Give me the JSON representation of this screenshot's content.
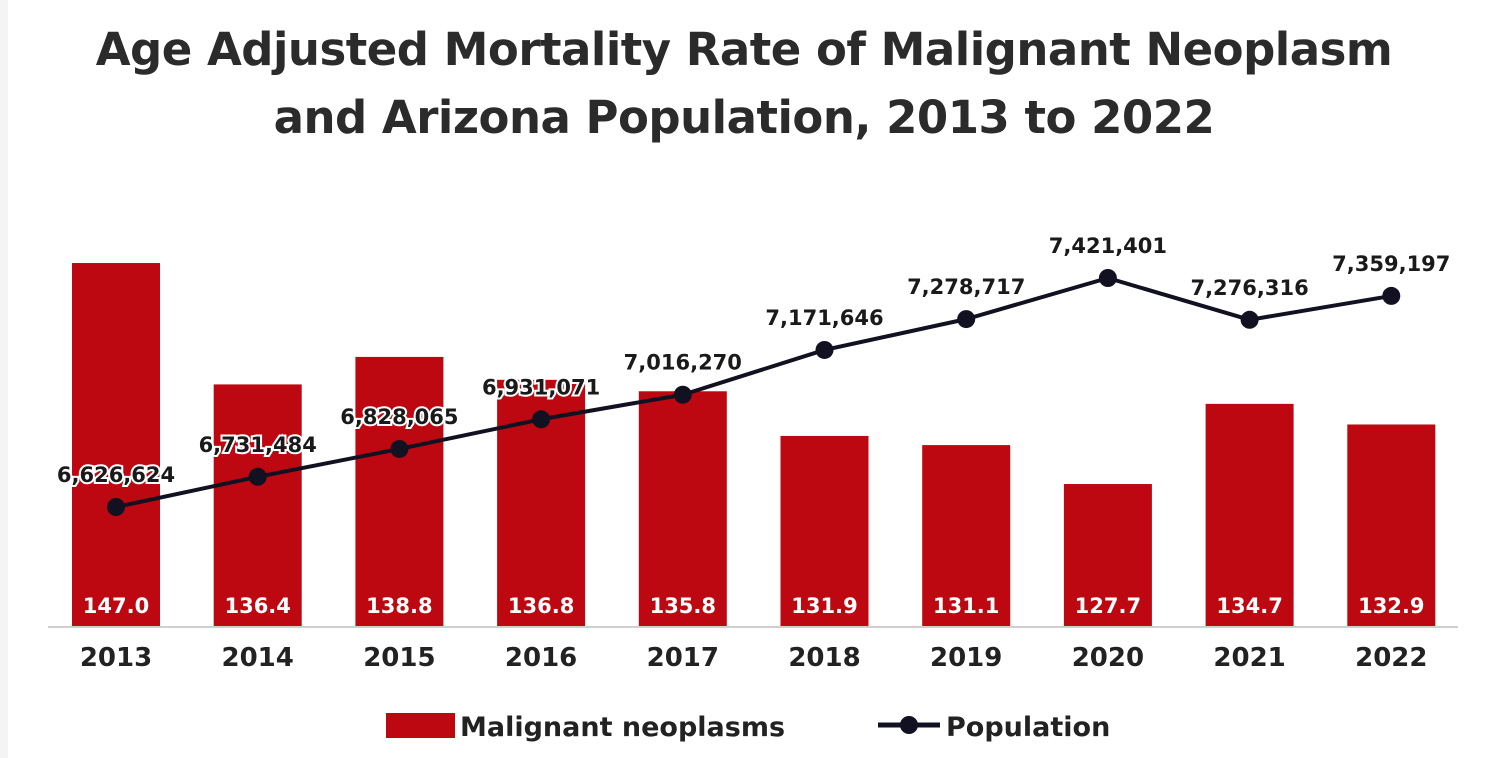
{
  "chart_data": {
    "type": "bar",
    "title": "Age Adjusted Mortality Rate of Malignant Neoplasm and Arizona Population, 2013 to 2022",
    "title_lines": [
      "Age Adjusted Mortality Rate of Malignant Neoplasm",
      "and Arizona Population, 2013 to 2022"
    ],
    "xlabel": "",
    "ylabel": "",
    "categories": [
      "2013",
      "2014",
      "2015",
      "2016",
      "2017",
      "2018",
      "2019",
      "2020",
      "2021",
      "2022"
    ],
    "series": [
      {
        "name": "Malignant neoplasms",
        "type": "bar",
        "color": "#bd0811",
        "values": [
          147.0,
          136.4,
          138.8,
          136.8,
          135.8,
          131.9,
          131.1,
          127.7,
          134.7,
          132.9
        ],
        "labels": [
          "147.0",
          "136.4",
          "138.8",
          "136.8",
          "135.8",
          "131.9",
          "131.1",
          "127.7",
          "134.7",
          "132.9"
        ],
        "ylim": [
          115.3,
          150
        ]
      },
      {
        "name": "Population",
        "type": "line",
        "color": "#111122",
        "values": [
          6626624,
          6731484,
          6828065,
          6931071,
          7016270,
          7171646,
          7278717,
          7421401,
          7276316,
          7359197
        ],
        "labels": [
          "6,626,624",
          "6,731,484",
          "6,828,065",
          "6,931,071",
          "7,016,270",
          "7,171,646",
          "7,278,717",
          "7,421,401",
          "7,276,316",
          "7,359,197"
        ],
        "ylim": [
          6200000,
          7600000
        ]
      }
    ],
    "legend": {
      "position": "bottom"
    },
    "grid": false
  }
}
